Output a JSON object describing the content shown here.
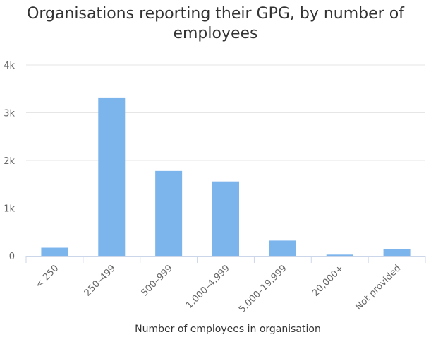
{
  "chart_data": {
    "type": "bar",
    "title_line1": "Organisations reporting their GPG, by number of",
    "title_line2": "employees",
    "xlabel": "Number of employees in organisation",
    "ylabel": "",
    "categories": [
      "< 250",
      "250–499",
      "500–999",
      "1,000–4,999",
      "5,000–19,999",
      "20,000+",
      "Not provided"
    ],
    "values": [
      170,
      3320,
      1780,
      1560,
      320,
      25,
      135
    ],
    "ylim": [
      0,
      4000
    ],
    "y_ticks": [
      0,
      1000,
      2000,
      3000,
      4000
    ],
    "y_tick_labels": [
      "0",
      "1k",
      "2k",
      "3k",
      "4k"
    ],
    "grid": true,
    "legend": "none"
  },
  "colors": {
    "bar": "#7cb5ec",
    "grid": "#e6e6e6",
    "axis": "#ccd6eb",
    "tick_text": "#666666",
    "axis_title": "#333333"
  }
}
